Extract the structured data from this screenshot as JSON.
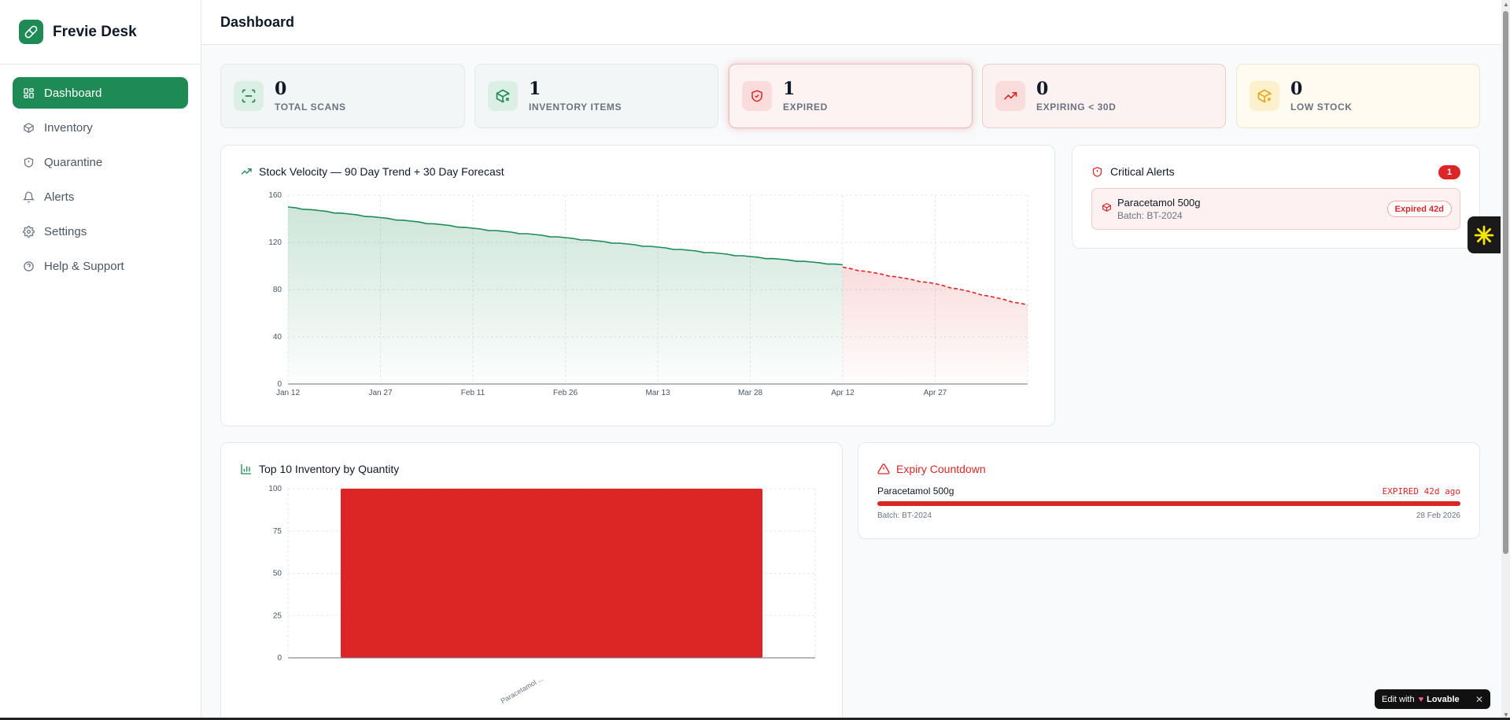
{
  "app": {
    "name": "Frevie Desk"
  },
  "sidebar": {
    "items": [
      {
        "label": "Dashboard",
        "icon": "grid-icon",
        "active": true
      },
      {
        "label": "Inventory",
        "icon": "box-icon"
      },
      {
        "label": "Quarantine",
        "icon": "shield-icon"
      },
      {
        "label": "Alerts",
        "icon": "bell-icon"
      },
      {
        "label": "Settings",
        "icon": "gear-icon"
      },
      {
        "label": "Help & Support",
        "icon": "help-icon"
      }
    ]
  },
  "header": {
    "title": "Dashboard"
  },
  "stats": [
    {
      "value": "0",
      "label": "TOTAL SCANS",
      "icon": "scan-icon",
      "color": "#1e8a55"
    },
    {
      "value": "1",
      "label": "INVENTORY ITEMS",
      "icon": "package-x-icon",
      "color": "#1e8a55"
    },
    {
      "value": "1",
      "label": "EXPIRED",
      "icon": "shield-alert-icon",
      "color": "#dc2626"
    },
    {
      "value": "0",
      "label": "EXPIRING < 30D",
      "icon": "trending-up-icon",
      "color": "#dc2626"
    },
    {
      "value": "0",
      "label": "LOW STOCK",
      "icon": "package-x-icon",
      "color": "#e6a817"
    }
  ],
  "velocity": {
    "title": "Stock Velocity — 90 Day Trend + 30 Day Forecast",
    "icon": "trending-up-icon"
  },
  "top10": {
    "title": "Top 10 Inventory by Quantity",
    "icon": "bar-chart-icon"
  },
  "critical_alerts": {
    "title": "Critical Alerts",
    "icon": "shield-alert-icon",
    "count": "1",
    "items": [
      {
        "name": "Paracetamol 500g",
        "batch": "Batch: BT-2024",
        "status": "Expired 42d",
        "icon": "package-icon"
      }
    ]
  },
  "expiry": {
    "title": "Expiry Countdown",
    "icon": "alert-triangle-icon",
    "item": {
      "name": "Paracetamol 500g",
      "status": "EXPIRED 42d ago",
      "batch": "Batch: BT-2024",
      "date": "28 Feb 2026",
      "progress": 1.0
    }
  },
  "lovable": {
    "prefix": "Edit with",
    "brand": "Lovable"
  },
  "chart_data": [
    {
      "type": "area",
      "title": "Stock Velocity — 90 Day Trend + 30 Day Forecast",
      "x_ticks": [
        "Jan 12",
        "Jan 27",
        "Feb 11",
        "Feb 26",
        "Mar 13",
        "Mar 28",
        "Apr 12",
        "Apr 27"
      ],
      "y_ticks": [
        "0",
        "40",
        "80",
        "120",
        "160"
      ],
      "ylim": [
        0,
        160
      ],
      "grid": true,
      "series": [
        {
          "x": [
            "Jan 12",
            "Jan 27",
            "Feb 11",
            "Feb 26",
            "Mar 13",
            "Mar 28",
            "Apr 12"
          ],
          "values": [
            150,
            141,
            132,
            124,
            116,
            108,
            101
          ],
          "color": "#1e8a55",
          "style": "solid"
        },
        {
          "x": [
            "Apr 12",
            "Apr 27",
            "May 12"
          ],
          "values": [
            99,
            85,
            67
          ],
          "color": "#dc2626",
          "style": "dashed"
        }
      ]
    },
    {
      "type": "bar",
      "title": "Top 10 Inventory by Quantity",
      "categories": [
        "Paracetamol ..."
      ],
      "values": [
        100
      ],
      "y_ticks": [
        "0",
        "25",
        "50",
        "75",
        "100"
      ],
      "ylim": [
        0,
        100
      ],
      "grid": true,
      "color": "#dc2626"
    }
  ]
}
